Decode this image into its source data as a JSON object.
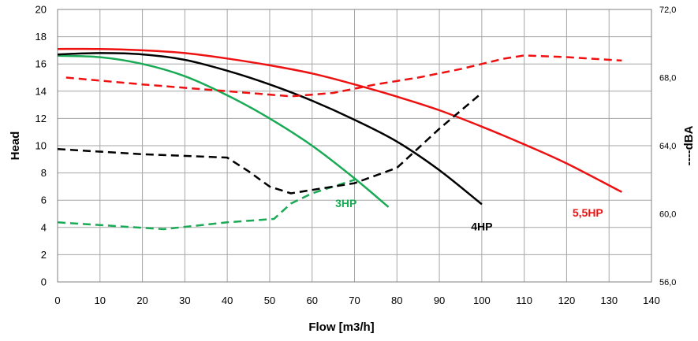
{
  "chart_data": {
    "type": "line",
    "title": "",
    "xlabel": "Flow [m3/h]",
    "ylabel": "Head",
    "y2label": "----dBA",
    "xlim": [
      0,
      140
    ],
    "ylim": [
      0,
      20
    ],
    "y2lim": [
      56,
      72
    ],
    "grid": true,
    "x_ticks": [
      "0",
      "10",
      "20",
      "30",
      "40",
      "50",
      "60",
      "70",
      "80",
      "90",
      "100",
      "110",
      "120",
      "130",
      "140"
    ],
    "y_ticks": [
      "0",
      "2",
      "4",
      "6",
      "8",
      "10",
      "12",
      "14",
      "16",
      "18",
      "20"
    ],
    "y2_ticks": [
      "56,0",
      "60,0",
      "64,0",
      "68,0",
      "72,0"
    ],
    "colors": {
      "3HP": "#1aaa55",
      "4HP": "#000000",
      "5,5HP": "#ee1111"
    },
    "series": [
      {
        "name": "3HP",
        "kind": "head",
        "color": "#1aaa55",
        "x": [
          0,
          10,
          20,
          30,
          40,
          50,
          60,
          70,
          78
        ],
        "y": [
          16.6,
          16.5,
          16.0,
          15.1,
          13.7,
          12.0,
          10.0,
          7.6,
          5.5
        ]
      },
      {
        "name": "4HP",
        "kind": "head",
        "color": "#000000",
        "x": [
          0,
          10,
          20,
          30,
          40,
          50,
          60,
          70,
          80,
          90,
          100
        ],
        "y": [
          16.7,
          16.8,
          16.7,
          16.3,
          15.5,
          14.5,
          13.3,
          11.9,
          10.3,
          8.2,
          5.7
        ]
      },
      {
        "name": "5,5HP",
        "kind": "head",
        "color": "#ee1111",
        "x": [
          0,
          10,
          20,
          30,
          40,
          50,
          60,
          70,
          80,
          90,
          100,
          110,
          120,
          133
        ],
        "y": [
          17.1,
          17.1,
          17.0,
          16.8,
          16.4,
          15.9,
          15.3,
          14.5,
          13.6,
          12.6,
          11.4,
          10.1,
          8.7,
          6.6
        ]
      },
      {
        "name": "3HP",
        "kind": "noise",
        "color": "#1aaa55",
        "x": [
          0,
          25,
          40,
          51,
          55,
          60,
          70
        ],
        "y": [
          59.5,
          59.1,
          59.5,
          59.7,
          60.6,
          61.2,
          62.0
        ]
      },
      {
        "name": "4HP",
        "kind": "noise",
        "color": "#000000",
        "x": [
          0,
          20,
          40,
          45,
          50,
          55,
          60,
          70,
          80,
          90,
          100
        ],
        "y": [
          63.8,
          63.5,
          63.3,
          62.5,
          61.6,
          61.2,
          61.4,
          61.8,
          62.7,
          65.0,
          67.1
        ]
      },
      {
        "name": "5,5HP",
        "kind": "noise",
        "color": "#ee1111",
        "x": [
          2,
          20,
          40,
          55,
          65,
          75,
          85,
          95,
          100,
          105,
          110,
          120,
          133
        ],
        "y": [
          68.0,
          67.6,
          67.2,
          66.9,
          67.1,
          67.6,
          68.0,
          68.5,
          68.8,
          69.1,
          69.3,
          69.2,
          69.0
        ]
      }
    ],
    "labels": [
      {
        "text": "3HP",
        "color": "#1aaa55",
        "x": 68,
        "y": 5.5
      },
      {
        "text": "4HP",
        "color": "#000000",
        "x": 100,
        "y": 3.8
      },
      {
        "text": "5,5HP",
        "color": "#ee1111",
        "x": 125,
        "y": 4.8
      }
    ]
  }
}
